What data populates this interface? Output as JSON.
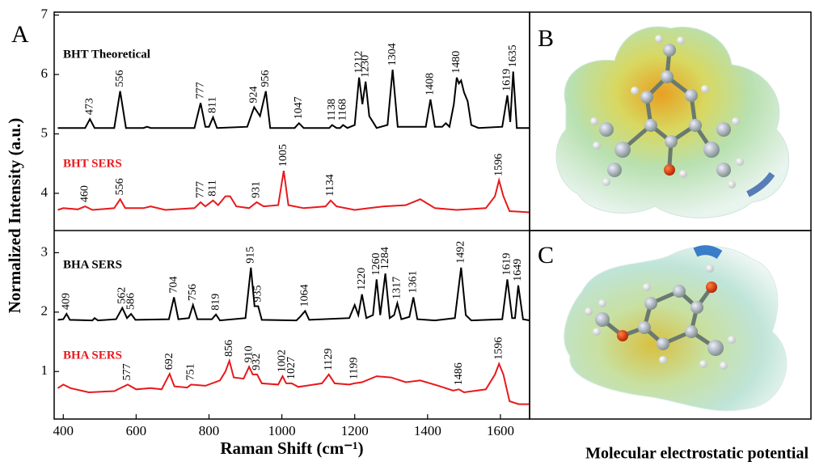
{
  "chart_data": {
    "type": "line",
    "x_label": "Raman Shift (cm⁻¹)",
    "y_label": "Normalized Intensity (a.u.)",
    "panel_label": "A",
    "xlim": [
      375,
      1680
    ],
    "ylim": [
      0.2,
      7.05
    ],
    "xticks": [
      400,
      600,
      800,
      1000,
      1200,
      1400,
      1600
    ],
    "yticks": [
      1,
      2,
      3,
      4,
      5,
      6,
      7
    ],
    "series": [
      {
        "name": "BHT Theoretical",
        "color": "#000000",
        "x": [
          385,
          460,
          473,
          486,
          540,
          556,
          572,
          620,
          630,
          640,
          760,
          777,
          790,
          800,
          811,
          822,
          905,
          918,
          924,
          940,
          956,
          968,
          1035,
          1047,
          1060,
          1130,
          1138,
          1150,
          1160,
          1168,
          1180,
          1200,
          1212,
          1221,
          1230,
          1240,
          1250,
          1260,
          1290,
          1304,
          1318,
          1395,
          1408,
          1420,
          1440,
          1450,
          1460,
          1472,
          1480,
          1486,
          1492,
          1500,
          1510,
          1520,
          1540,
          1605,
          1619,
          1627,
          1635,
          1645,
          1680
        ],
        "values": [
          5.1,
          5.1,
          5.25,
          5.1,
          5.1,
          5.72,
          5.1,
          5.1,
          5.12,
          5.1,
          5.1,
          5.52,
          5.12,
          5.12,
          5.28,
          5.1,
          5.12,
          5.35,
          5.45,
          5.3,
          5.72,
          5.1,
          5.1,
          5.18,
          5.1,
          5.1,
          5.15,
          5.1,
          5.1,
          5.15,
          5.1,
          5.15,
          5.95,
          5.5,
          5.88,
          5.3,
          5.2,
          5.1,
          5.15,
          6.08,
          5.12,
          5.12,
          5.58,
          5.12,
          5.12,
          5.18,
          5.12,
          5.5,
          5.95,
          5.85,
          5.9,
          5.7,
          5.55,
          5.15,
          5.1,
          5.12,
          5.65,
          5.2,
          6.05,
          5.1,
          5.1
        ],
        "peak_labels": [
          473,
          556,
          777,
          811,
          924,
          956,
          1047,
          1138,
          1168,
          1212,
          1230,
          1304,
          1408,
          1480,
          1619,
          1635
        ]
      },
      {
        "name": "BHT SERS",
        "color": "#e8191c",
        "x": [
          385,
          400,
          440,
          460,
          480,
          540,
          556,
          570,
          620,
          640,
          680,
          760,
          777,
          790,
          811,
          825,
          845,
          858,
          875,
          910,
          931,
          950,
          990,
          1005,
          1018,
          1060,
          1120,
          1134,
          1150,
          1200,
          1240,
          1280,
          1340,
          1380,
          1420,
          1480,
          1560,
          1585,
          1596,
          1608,
          1625,
          1680
        ],
        "values": [
          3.72,
          3.75,
          3.73,
          3.78,
          3.72,
          3.75,
          3.9,
          3.75,
          3.75,
          3.78,
          3.72,
          3.75,
          3.85,
          3.78,
          3.88,
          3.8,
          3.95,
          3.95,
          3.78,
          3.75,
          3.85,
          3.78,
          3.8,
          4.38,
          3.8,
          3.75,
          3.78,
          3.88,
          3.78,
          3.72,
          3.75,
          3.78,
          3.8,
          3.9,
          3.75,
          3.72,
          3.75,
          3.95,
          4.22,
          3.95,
          3.7,
          3.68
        ],
        "peak_labels": [
          460,
          556,
          777,
          811,
          931,
          1005,
          1134,
          1596
        ]
      },
      {
        "name": "BHA SERS",
        "color": "#000000",
        "x": [
          385,
          400,
          409,
          418,
          480,
          486,
          495,
          545,
          562,
          575,
          586,
          598,
          690,
          704,
          716,
          745,
          756,
          768,
          808,
          819,
          830,
          900,
          915,
          925,
          935,
          945,
          1040,
          1050,
          1064,
          1075,
          1185,
          1200,
          1210,
          1220,
          1232,
          1250,
          1260,
          1270,
          1284,
          1296,
          1308,
          1317,
          1328,
          1350,
          1361,
          1372,
          1420,
          1475,
          1492,
          1505,
          1520,
          1605,
          1619,
          1632,
          1640,
          1649,
          1662,
          1680
        ],
        "values": [
          1.87,
          1.88,
          1.97,
          1.87,
          1.86,
          1.9,
          1.86,
          1.88,
          2.07,
          1.9,
          1.97,
          1.87,
          1.88,
          2.25,
          1.88,
          1.9,
          2.12,
          1.88,
          1.88,
          1.96,
          1.86,
          1.9,
          2.75,
          2.1,
          2.1,
          1.87,
          1.86,
          1.92,
          2.02,
          1.87,
          1.9,
          2.12,
          1.95,
          2.3,
          1.9,
          1.95,
          2.55,
          1.95,
          2.65,
          1.9,
          1.95,
          2.15,
          1.88,
          1.92,
          2.25,
          1.88,
          1.86,
          1.9,
          2.75,
          1.95,
          1.86,
          1.88,
          2.55,
          1.9,
          1.9,
          2.45,
          1.88,
          1.86
        ],
        "peak_labels": [
          409,
          562,
          586,
          704,
          756,
          819,
          915,
          935,
          1064,
          1220,
          1260,
          1284,
          1317,
          1361,
          1492,
          1619,
          1649
        ]
      },
      {
        "name": "BHA SERS",
        "color": "#e8191c",
        "x": [
          385,
          400,
          420,
          470,
          540,
          577,
          600,
          640,
          670,
          692,
          705,
          740,
          751,
          790,
          830,
          845,
          856,
          868,
          895,
          910,
          920,
          932,
          945,
          990,
          1002,
          1012,
          1027,
          1045,
          1110,
          1129,
          1145,
          1185,
          1199,
          1220,
          1260,
          1300,
          1340,
          1380,
          1430,
          1470,
          1486,
          1500,
          1560,
          1585,
          1596,
          1608,
          1625,
          1650,
          1680
        ],
        "values": [
          0.72,
          0.78,
          0.72,
          0.65,
          0.67,
          0.78,
          0.7,
          0.72,
          0.7,
          0.96,
          0.75,
          0.73,
          0.78,
          0.76,
          0.85,
          1.0,
          1.18,
          0.9,
          0.88,
          1.08,
          0.95,
          0.95,
          0.8,
          0.78,
          0.92,
          0.8,
          0.8,
          0.74,
          0.8,
          0.95,
          0.8,
          0.78,
          0.8,
          0.82,
          0.92,
          0.9,
          0.82,
          0.85,
          0.76,
          0.68,
          0.7,
          0.65,
          0.7,
          0.95,
          1.13,
          0.95,
          0.5,
          0.45,
          0.45
        ],
        "peak_labels": [
          577,
          692,
          751,
          856,
          910,
          932,
          1002,
          1027,
          1129,
          1199,
          1486,
          1596
        ]
      }
    ]
  },
  "panels": {
    "b": "B",
    "c": "C",
    "caption": "Molecular electrostatic potential"
  }
}
